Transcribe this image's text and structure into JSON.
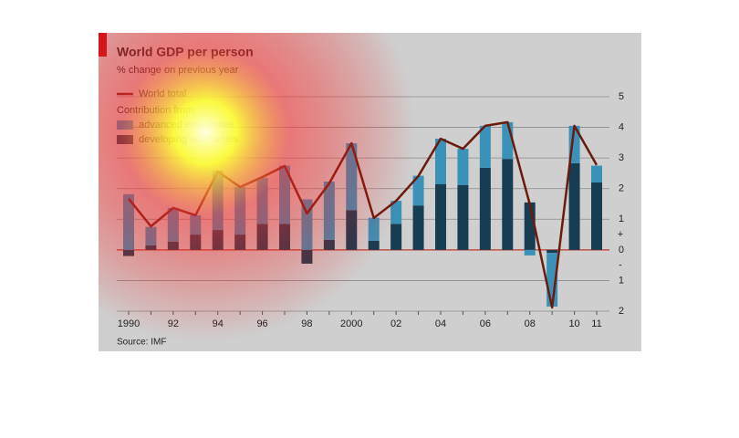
{
  "chart_data": {
    "type": "stacked_bar_line",
    "title": "World GDP per person",
    "subtitle": "% change on previous year",
    "source": "Source: IMF",
    "legend_heading": "Contribution from:",
    "sign_labels": [
      "+",
      "-"
    ],
    "categories": [
      "1990",
      null,
      "92",
      null,
      "94",
      null,
      "96",
      null,
      "98",
      null,
      "2000",
      null,
      "02",
      null,
      "04",
      null,
      "06",
      null,
      "08",
      null,
      "10",
      "11"
    ],
    "series": [
      {
        "name": "developing economies",
        "color": "#173d52",
        "kind": "bar",
        "values": [
          -0.2,
          0.15,
          0.27,
          0.5,
          0.65,
          0.5,
          0.85,
          0.85,
          -0.45,
          0.33,
          1.3,
          0.3,
          0.85,
          1.45,
          2.15,
          2.12,
          2.68,
          2.97,
          1.55,
          -0.1,
          2.83,
          2.2
        ]
      },
      {
        "name": "advanced economies",
        "color": "#3a92b8",
        "kind": "bar",
        "values": [
          1.82,
          0.6,
          1.1,
          0.63,
          1.94,
          1.55,
          1.5,
          1.9,
          1.65,
          1.9,
          2.18,
          0.75,
          0.75,
          0.97,
          1.48,
          1.18,
          1.37,
          1.2,
          -0.18,
          -1.75,
          1.22,
          0.55
        ]
      },
      {
        "name": "World total",
        "color": "#6b1a0e",
        "kind": "line",
        "values": [
          1.67,
          0.77,
          1.37,
          1.13,
          2.56,
          2.05,
          2.38,
          2.74,
          1.19,
          2.17,
          3.48,
          1.04,
          1.6,
          2.41,
          3.63,
          3.3,
          4.05,
          4.17,
          1.49,
          -1.88,
          4.05,
          2.77
        ]
      }
    ],
    "ylim": [
      -2,
      5
    ],
    "yticks": [
      5,
      4,
      3,
      2,
      1,
      0,
      {
        "value": -1,
        "label": "1"
      },
      {
        "value": -2,
        "label": "2"
      }
    ],
    "grid": true,
    "zero_line_color": "#c0392b"
  }
}
